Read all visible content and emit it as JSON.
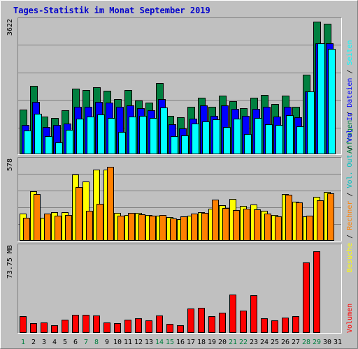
{
  "chart_data": [
    {
      "type": "bar",
      "panel": "requests-files-pages",
      "title": "Tages-Statistik im Monat September 2019",
      "categories": [
        "1",
        "2",
        "3",
        "4",
        "5",
        "6",
        "7",
        "8",
        "9",
        "10",
        "11",
        "12",
        "13",
        "14",
        "15",
        "16",
        "17",
        "18",
        "19",
        "20",
        "21",
        "22",
        "23",
        "24",
        "25",
        "26",
        "27",
        "28",
        "29",
        "30",
        "31"
      ],
      "weekend_days": [
        "1",
        "7",
        "8",
        "14",
        "15",
        "21",
        "22",
        "28",
        "29"
      ],
      "ymax_label": "3622",
      "ylim": [
        0,
        3622
      ],
      "series": [
        {
          "name": "Anfragen",
          "color": "#008040",
          "values": [
            1190,
            1840,
            1000,
            960,
            1180,
            1760,
            1730,
            1810,
            1700,
            1480,
            1730,
            1450,
            1390,
            1920,
            1020,
            980,
            1280,
            1520,
            1270,
            1580,
            1430,
            1240,
            1520,
            1590,
            1340,
            1580,
            1270,
            2140,
            3580,
            3530,
            0
          ]
        },
        {
          "name": "Dateien",
          "color": "#0000ff",
          "values": [
            780,
            1400,
            730,
            770,
            820,
            1280,
            1280,
            1400,
            1380,
            1280,
            1310,
            1230,
            1170,
            1480,
            790,
            690,
            940,
            1300,
            1030,
            1300,
            1210,
            1020,
            1220,
            1270,
            1000,
            1270,
            980,
            1690,
            3000,
            3000,
            0
          ]
        },
        {
          "name": "Seiten",
          "color": "#00ffff",
          "values": [
            620,
            1090,
            470,
            310,
            640,
            950,
            1000,
            1070,
            960,
            580,
            1000,
            1030,
            970,
            1250,
            480,
            490,
            820,
            880,
            930,
            730,
            950,
            540,
            960,
            790,
            780,
            1050,
            740,
            1690,
            2990,
            2850,
            0
          ]
        }
      ]
    },
    {
      "type": "bar",
      "panel": "visits-hosts",
      "categories": [
        "1",
        "2",
        "3",
        "4",
        "5",
        "6",
        "7",
        "8",
        "9",
        "10",
        "11",
        "12",
        "13",
        "14",
        "15",
        "16",
        "17",
        "18",
        "19",
        "20",
        "21",
        "22",
        "23",
        "24",
        "25",
        "26",
        "27",
        "28",
        "29",
        "30",
        "31"
      ],
      "ymax_label": "578",
      "ylim": [
        0,
        578
      ],
      "series": [
        {
          "name": "Besuche",
          "color": "#ffff00",
          "values": [
            190,
            350,
            160,
            200,
            200,
            470,
            420,
            510,
            510,
            195,
            180,
            195,
            180,
            175,
            165,
            150,
            175,
            200,
            225,
            250,
            295,
            245,
            255,
            210,
            180,
            330,
            275,
            170,
            310,
            345,
            0
          ]
        },
        {
          "name": "Rechner",
          "color": "#ff8000",
          "values": [
            160,
            330,
            190,
            175,
            180,
            380,
            210,
            260,
            530,
            175,
            195,
            185,
            175,
            180,
            155,
            170,
            190,
            195,
            290,
            230,
            215,
            225,
            220,
            190,
            170,
            325,
            270,
            175,
            285,
            335,
            0
          ]
        }
      ]
    },
    {
      "type": "bar",
      "panel": "volume",
      "categories": [
        "1",
        "2",
        "3",
        "4",
        "5",
        "6",
        "7",
        "8",
        "9",
        "10",
        "11",
        "12",
        "13",
        "14",
        "15",
        "16",
        "17",
        "18",
        "19",
        "20",
        "21",
        "22",
        "23",
        "24",
        "25",
        "26",
        "27",
        "28",
        "29",
        "30",
        "31"
      ],
      "ymax_label": "73.75 MB",
      "ylim": [
        0,
        73.75
      ],
      "series": [
        {
          "name": "Volumen",
          "color": "#ff0000",
          "values": [
            13.5,
            8.0,
            8.2,
            5.9,
            11.0,
            15.2,
            15.2,
            14.6,
            8.5,
            7.8,
            10.5,
            12.2,
            10.1,
            14.6,
            7.2,
            5.7,
            20.6,
            21.0,
            13.5,
            16.5,
            32.4,
            18.4,
            31.7,
            12.0,
            10.0,
            12.7,
            14.0,
            60.0,
            69.5,
            0,
            0
          ]
        }
      ]
    }
  ],
  "legend_right": {
    "top": [
      {
        "text": "Anfragen",
        "color": "#008040"
      },
      {
        "text": "Dateien",
        "color": "#0000ff"
      },
      {
        "text": "Seiten",
        "color": "#00ffff"
      }
    ],
    "middle": [
      {
        "text": "Besuche",
        "color": "#ffff00"
      },
      {
        "text": "Rechner",
        "color": "#ff8000"
      },
      {
        "text": "Vol. Out",
        "color": "#00c0c0"
      },
      {
        "text": "Vol. In",
        "color": "#0000ff"
      }
    ],
    "bottom": [
      {
        "text": "Volumen",
        "color": "#ff0000"
      }
    ],
    "separator": "/"
  },
  "colors": {
    "background": "#c0c0c0",
    "title": "#0000cc",
    "weekday_label": "#000000",
    "weekend_label": "#008040"
  }
}
